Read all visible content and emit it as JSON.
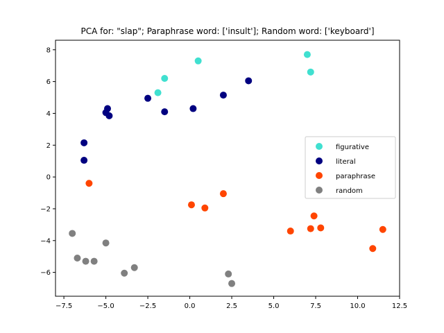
{
  "chart_data": {
    "type": "scatter",
    "title": "PCA for: \"slap\"; Paraphrase word: ['insult']; Random word: ['keyboard']",
    "xlabel": "",
    "ylabel": "",
    "xlim": [
      -8.0,
      12.5
    ],
    "ylim": [
      -7.5,
      8.6
    ],
    "xticks": [
      -7.5,
      -5.0,
      -2.5,
      0.0,
      2.5,
      5.0,
      7.5,
      10.0,
      12.5
    ],
    "xtick_labels": [
      "−7.5",
      "−5.0",
      "−2.5",
      "0.0",
      "2.5",
      "5.0",
      "7.5",
      "10.0",
      "12.5"
    ],
    "yticks": [
      -6,
      -4,
      -2,
      0,
      2,
      4,
      6,
      8
    ],
    "ytick_labels": [
      "−6",
      "−4",
      "−2",
      "0",
      "2",
      "4",
      "6",
      "8"
    ],
    "grid": false,
    "legend_position": "center-right",
    "series": [
      {
        "name": "figurative",
        "color": "#40e0d0",
        "points": [
          [
            0.5,
            7.3
          ],
          [
            -1.5,
            6.2
          ],
          [
            -1.9,
            5.3
          ],
          [
            7.0,
            7.7
          ],
          [
            7.2,
            6.6
          ]
        ]
      },
      {
        "name": "literal",
        "color": "#000080",
        "points": [
          [
            3.5,
            6.05
          ],
          [
            2.0,
            5.15
          ],
          [
            0.2,
            4.3
          ],
          [
            -1.5,
            4.1
          ],
          [
            -2.5,
            4.95
          ],
          [
            -4.9,
            4.3
          ],
          [
            -5.0,
            4.05
          ],
          [
            -4.8,
            3.85
          ],
          [
            -6.3,
            2.15
          ],
          [
            -6.3,
            1.05
          ]
        ]
      },
      {
        "name": "paraphrase",
        "color": "#ff4500",
        "points": [
          [
            -6.0,
            -0.4
          ],
          [
            0.1,
            -1.75
          ],
          [
            0.9,
            -1.95
          ],
          [
            2.0,
            -1.05
          ],
          [
            6.0,
            -3.4
          ],
          [
            7.2,
            -3.25
          ],
          [
            7.4,
            -2.45
          ],
          [
            7.8,
            -3.2
          ],
          [
            10.9,
            -4.5
          ],
          [
            11.5,
            -3.3
          ]
        ]
      },
      {
        "name": "random",
        "color": "#808080",
        "points": [
          [
            -7.0,
            -3.55
          ],
          [
            -6.7,
            -5.1
          ],
          [
            -6.2,
            -5.3
          ],
          [
            -5.7,
            -5.3
          ],
          [
            -5.0,
            -4.15
          ],
          [
            -3.9,
            -6.05
          ],
          [
            -3.3,
            -5.7
          ],
          [
            2.3,
            -6.1
          ],
          [
            2.5,
            -6.7
          ]
        ]
      }
    ]
  }
}
